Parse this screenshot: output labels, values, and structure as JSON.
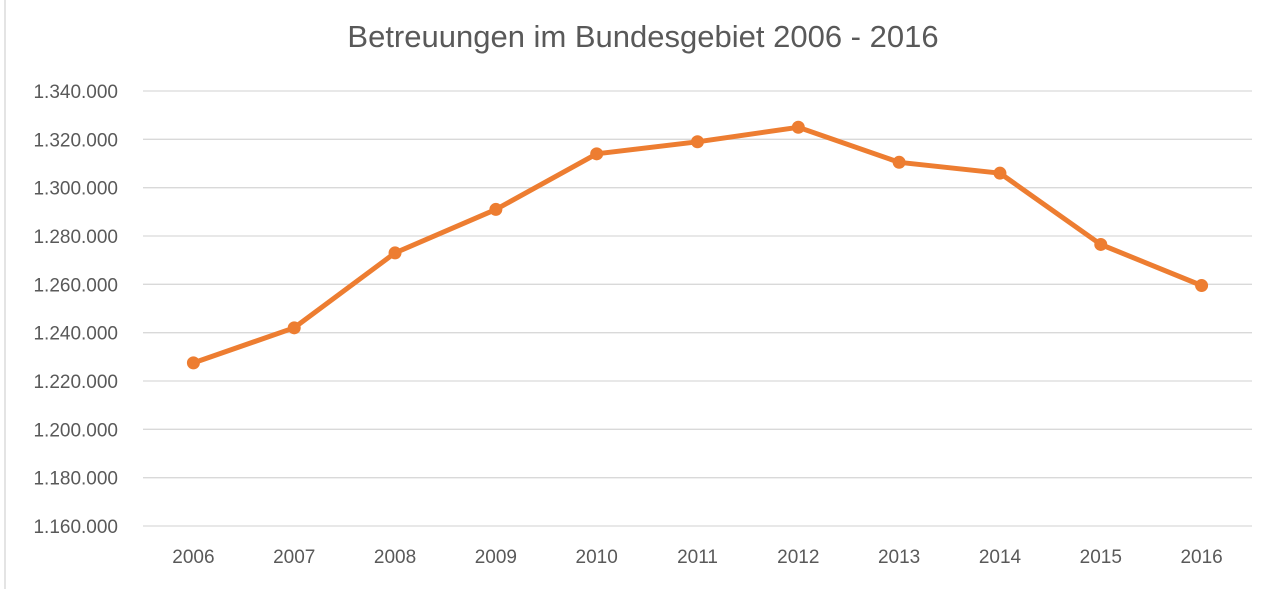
{
  "chart_data": {
    "type": "line",
    "title": "Betreuungen im Bundesgebiet 2006 - 2016",
    "xlabel": "",
    "ylabel": "",
    "categories": [
      "2006",
      "2007",
      "2008",
      "2009",
      "2010",
      "2011",
      "2012",
      "2013",
      "2014",
      "2015",
      "2016"
    ],
    "series": [
      {
        "values": [
          1227500,
          1242000,
          1273000,
          1291000,
          1314000,
          1319000,
          1325000,
          1310500,
          1306000,
          1276500,
          1259500
        ],
        "color": "#ed7d31"
      }
    ],
    "ylim": [
      1160000,
      1340000
    ],
    "y_ticks": [
      1160000,
      1180000,
      1200000,
      1220000,
      1240000,
      1260000,
      1280000,
      1300000,
      1320000,
      1340000
    ],
    "y_tick_labels": [
      "1.160.000",
      "1.180.000",
      "1.200.000",
      "1.220.000",
      "1.240.000",
      "1.260.000",
      "1.280.000",
      "1.300.000",
      "1.320.000",
      "1.340.000"
    ],
    "grid": true,
    "legend": "none",
    "markers": true
  }
}
